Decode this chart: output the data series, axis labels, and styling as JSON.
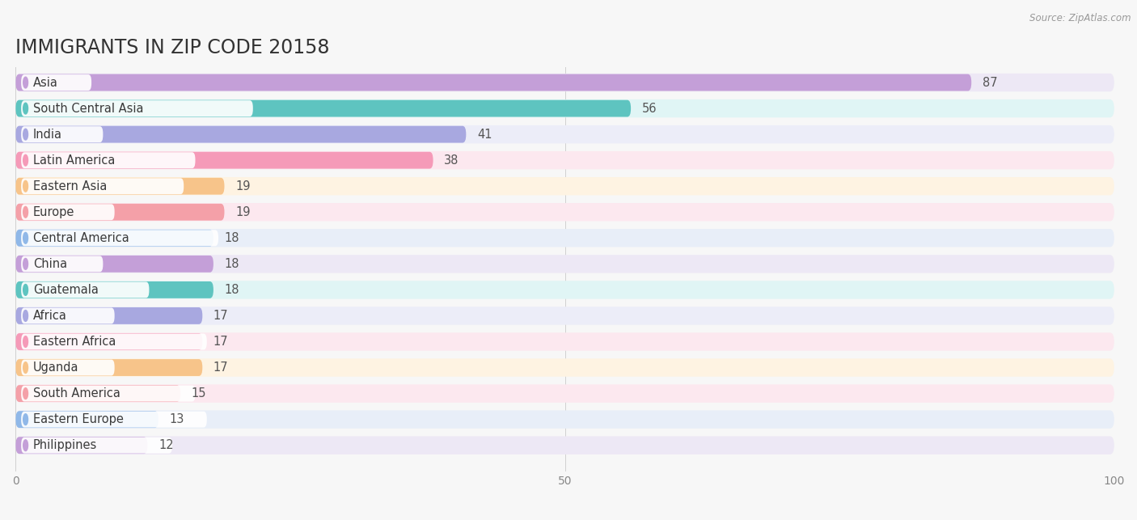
{
  "title": "IMMIGRANTS IN ZIP CODE 20158",
  "source": "Source: ZipAtlas.com",
  "categories": [
    "Asia",
    "South Central Asia",
    "India",
    "Latin America",
    "Eastern Asia",
    "Europe",
    "Central America",
    "China",
    "Guatemala",
    "Africa",
    "Eastern Africa",
    "Uganda",
    "South America",
    "Eastern Europe",
    "Philippines"
  ],
  "values": [
    87,
    56,
    41,
    38,
    19,
    19,
    18,
    18,
    18,
    17,
    17,
    17,
    15,
    13,
    12
  ],
  "bar_colors": [
    "#c49fd8",
    "#5ec4c0",
    "#a8a8e0",
    "#f59ab8",
    "#f7c48a",
    "#f4a0a8",
    "#90b8e8",
    "#c49fd8",
    "#5ec4c0",
    "#a8a8e0",
    "#f59ab8",
    "#f7c48a",
    "#f4a0a8",
    "#90b8e8",
    "#c49fd8"
  ],
  "bg_colors": [
    "#ede8f5",
    "#e0f5f5",
    "#ecedf8",
    "#fce8ef",
    "#fef3e2",
    "#fce8ef",
    "#e8eef8",
    "#ede8f5",
    "#e0f5f5",
    "#ecedf8",
    "#fce8ef",
    "#fef3e2",
    "#fce8ef",
    "#e8eef8",
    "#ede8f5"
  ],
  "xlim": [
    0,
    100
  ],
  "xticks": [
    0,
    50,
    100
  ],
  "title_fontsize": 17,
  "label_fontsize": 10.5,
  "value_fontsize": 10.5,
  "background_color": "#f7f7f7",
  "row_bg": "#f0f0f0"
}
